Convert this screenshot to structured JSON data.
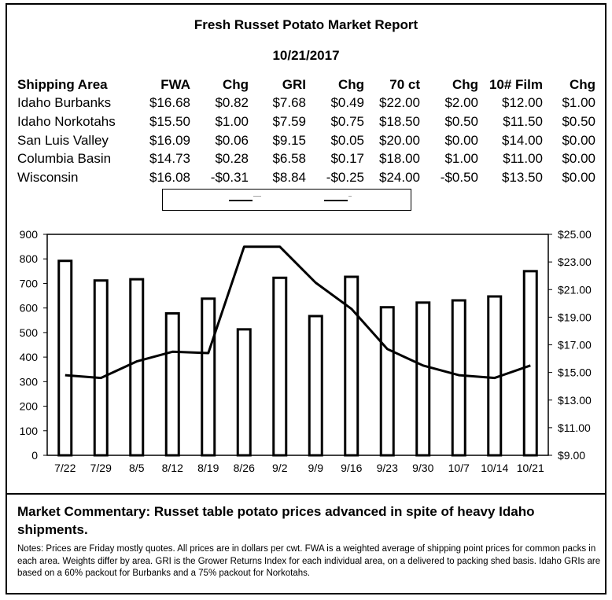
{
  "report": {
    "title": "Fresh Russet Potato Market Report",
    "date": "10/21/2017"
  },
  "market_table": {
    "headers": [
      "Shipping Area",
      "FWA",
      "Chg",
      "GRI",
      "Chg",
      "70 ct",
      "Chg",
      "10# Film",
      "Chg"
    ],
    "rows": [
      [
        "Idaho Burbanks",
        "$16.68",
        "$0.82",
        "$7.68",
        "$0.49",
        "$22.00",
        "$2.00",
        "$12.00",
        "$1.00"
      ],
      [
        "Idaho Norkotahs",
        "$15.50",
        "$1.00",
        "$7.59",
        "$0.75",
        "$18.50",
        "$0.50",
        "$11.50",
        "$0.50"
      ],
      [
        "San Luis Valley",
        "$16.09",
        "$0.06",
        "$9.15",
        "$0.05",
        "$20.00",
        "$0.00",
        "$14.00",
        "$0.00"
      ],
      [
        "Columbia Basin",
        "$14.73",
        "$0.28",
        "$6.58",
        "$0.17",
        "$18.00",
        "$1.00",
        "$11.00",
        "$0.00"
      ],
      [
        "Wisconsin",
        "$16.08",
        "-$0.31",
        "$8.84",
        "-$0.25",
        "$24.00",
        "-$0.50",
        "$13.50",
        "$0.00"
      ]
    ]
  },
  "legend": {
    "items": [
      "-----",
      "--"
    ]
  },
  "chart_data": {
    "type": "bar",
    "categories": [
      "7/22",
      "7/29",
      "8/5",
      "8/12",
      "8/19",
      "8/26",
      "9/2",
      "9/9",
      "9/16",
      "9/23",
      "9/30",
      "10/7",
      "10/14",
      "10/21"
    ],
    "series": [
      {
        "type": "bar",
        "axis": "left",
        "values": [
          792,
          712,
          717,
          578,
          638,
          513,
          723,
          567,
          727,
          603,
          622,
          631,
          647,
          750
        ]
      },
      {
        "type": "line",
        "axis": "right",
        "values": [
          14.8,
          14.6,
          15.8,
          16.5,
          16.4,
          24.1,
          24.1,
          21.5,
          19.6,
          16.7,
          15.5,
          14.8,
          14.6,
          15.5
        ]
      }
    ],
    "left_axis": {
      "min": 0,
      "max": 900,
      "ticks": [
        0,
        100,
        200,
        300,
        400,
        500,
        600,
        700,
        800,
        900
      ]
    },
    "right_axis": {
      "min": 9,
      "max": 25,
      "ticks": [
        "$9.00",
        "$11.00",
        "$13.00",
        "$15.00",
        "$17.00",
        "$19.00",
        "$21.00",
        "$23.00",
        "$25.00"
      ]
    },
    "grid": false,
    "legend_position": "top"
  },
  "commentary": "Market Commentary: Russet table potato prices advanced in spite of heavy Idaho shipments.",
  "notes": "Notes: Prices are Friday mostly quotes. All prices are in dollars per cwt. FWA is a weighted average of shipping point prices for  common packs in each area. Weights differ by area. GRI is the Grower Returns Index for each individual area, on a delivered to packing shed basis. Idaho GRIs are based on a 60% packout for Burbanks and a 75% packout for Norkotahs."
}
